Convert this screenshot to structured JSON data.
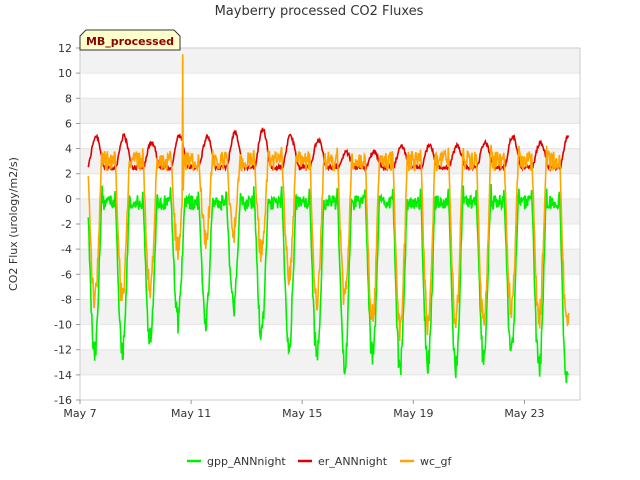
{
  "chart_data": {
    "type": "line",
    "title": "Mayberry processed CO2 Fluxes",
    "ylabel": "CO2 Flux (urology/m2/s)",
    "xlabel": "",
    "tag": "MB_processed",
    "ylim": [
      -16,
      12
    ],
    "yticks": [
      -16,
      -14,
      -12,
      -10,
      -8,
      -6,
      -4,
      -2,
      0,
      2,
      4,
      6,
      8,
      10,
      12
    ],
    "xlim_day": [
      7,
      25
    ],
    "xticks": [
      {
        "day": 7,
        "label": "May 7"
      },
      {
        "day": 11,
        "label": "May 11"
      },
      {
        "day": 15,
        "label": "May 15"
      },
      {
        "day": 19,
        "label": "May 19"
      },
      {
        "day": 23,
        "label": "May 23"
      }
    ],
    "grid": "horizontal-bands",
    "legend_position": "bottom-center",
    "series": [
      {
        "name": "gpp_ANNnight",
        "color": "#00ee00",
        "daily_min": [
          -12.5,
          -11.3,
          -9.7,
          -9.5,
          -8.5,
          -10.5,
          -11.5,
          -12.5,
          -13.0,
          -12.5,
          -13.5,
          -13.0,
          -13.5,
          -12.5,
          -12.0,
          -13.5,
          -14.5
        ],
        "day_max": 1.0
      },
      {
        "name": "er_ANNnight",
        "color": "#dd0000",
        "daily_max": [
          5.0,
          4.5,
          5.0,
          5.0,
          5.3,
          5.5,
          5.0,
          4.7,
          3.7,
          3.7,
          4.2,
          4.2,
          4.2,
          4.5,
          5.0,
          4.5,
          5.0
        ],
        "night_min": 2.5
      },
      {
        "name": "wc_gf",
        "color": "#ffa500",
        "daily_min": [
          -8.0,
          -7.0,
          -4.0,
          -3.0,
          -2.5,
          -4.0,
          -6.0,
          -8.0,
          -8.0,
          -9.5,
          -10.5,
          -10.0,
          -9.5,
          -10.0,
          -8.5,
          -9.5,
          -10.0
        ],
        "night_max": 4.0,
        "spike": {
          "day": 10.7,
          "value": 11.5
        }
      }
    ]
  }
}
